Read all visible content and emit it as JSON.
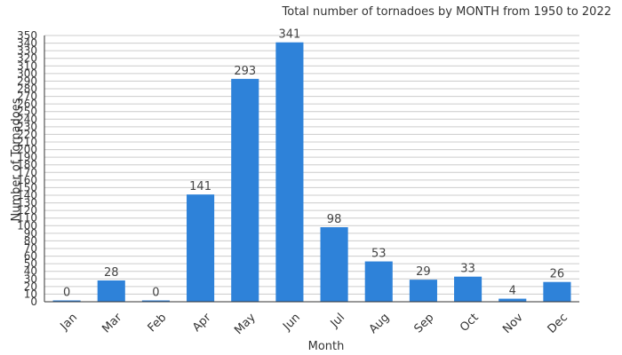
{
  "chart_data": {
    "type": "bar",
    "title": "Total number of tornadoes by MONTH from 1950 to 2022",
    "xlabel": "Month",
    "ylabel": "Number of Tornadoes",
    "categories": [
      "Jan",
      "Mar",
      "Feb",
      "Apr",
      "May",
      "Jun",
      "Jul",
      "Aug",
      "Sep",
      "Oct",
      "Nov",
      "Dec"
    ],
    "values": [
      0,
      28,
      0,
      141,
      293,
      341,
      98,
      53,
      29,
      33,
      4,
      26
    ],
    "ylim": [
      0,
      350
    ],
    "ytick_step": 10,
    "grid": true,
    "bar_color": "#2e82d9"
  }
}
